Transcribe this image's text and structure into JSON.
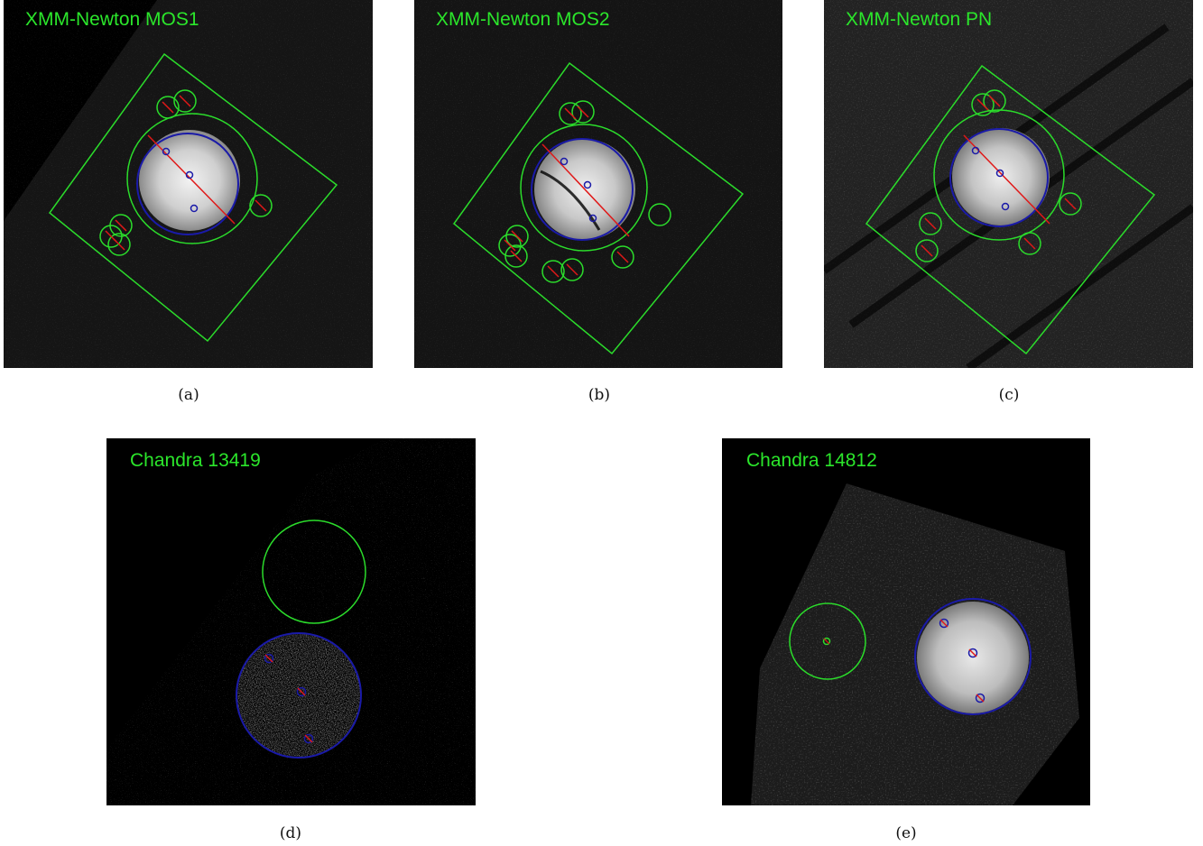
{
  "colors": {
    "label_green": "#2be62b",
    "region_green": "#2bdc2b",
    "region_blue": "#1a1aa8",
    "point_red": "#e01818"
  },
  "panels": [
    {
      "id": "a",
      "title": "XMM-Newton MOS1",
      "caption": "(a)"
    },
    {
      "id": "b",
      "title": "XMM-Newton MOS2",
      "caption": "(b)"
    },
    {
      "id": "c",
      "title": "XMM-Newton PN",
      "caption": "(c)"
    },
    {
      "id": "d",
      "title": "Chandra 13419",
      "caption": "(d)"
    },
    {
      "id": "e",
      "title": "Chandra 14812",
      "caption": "(e)"
    }
  ]
}
